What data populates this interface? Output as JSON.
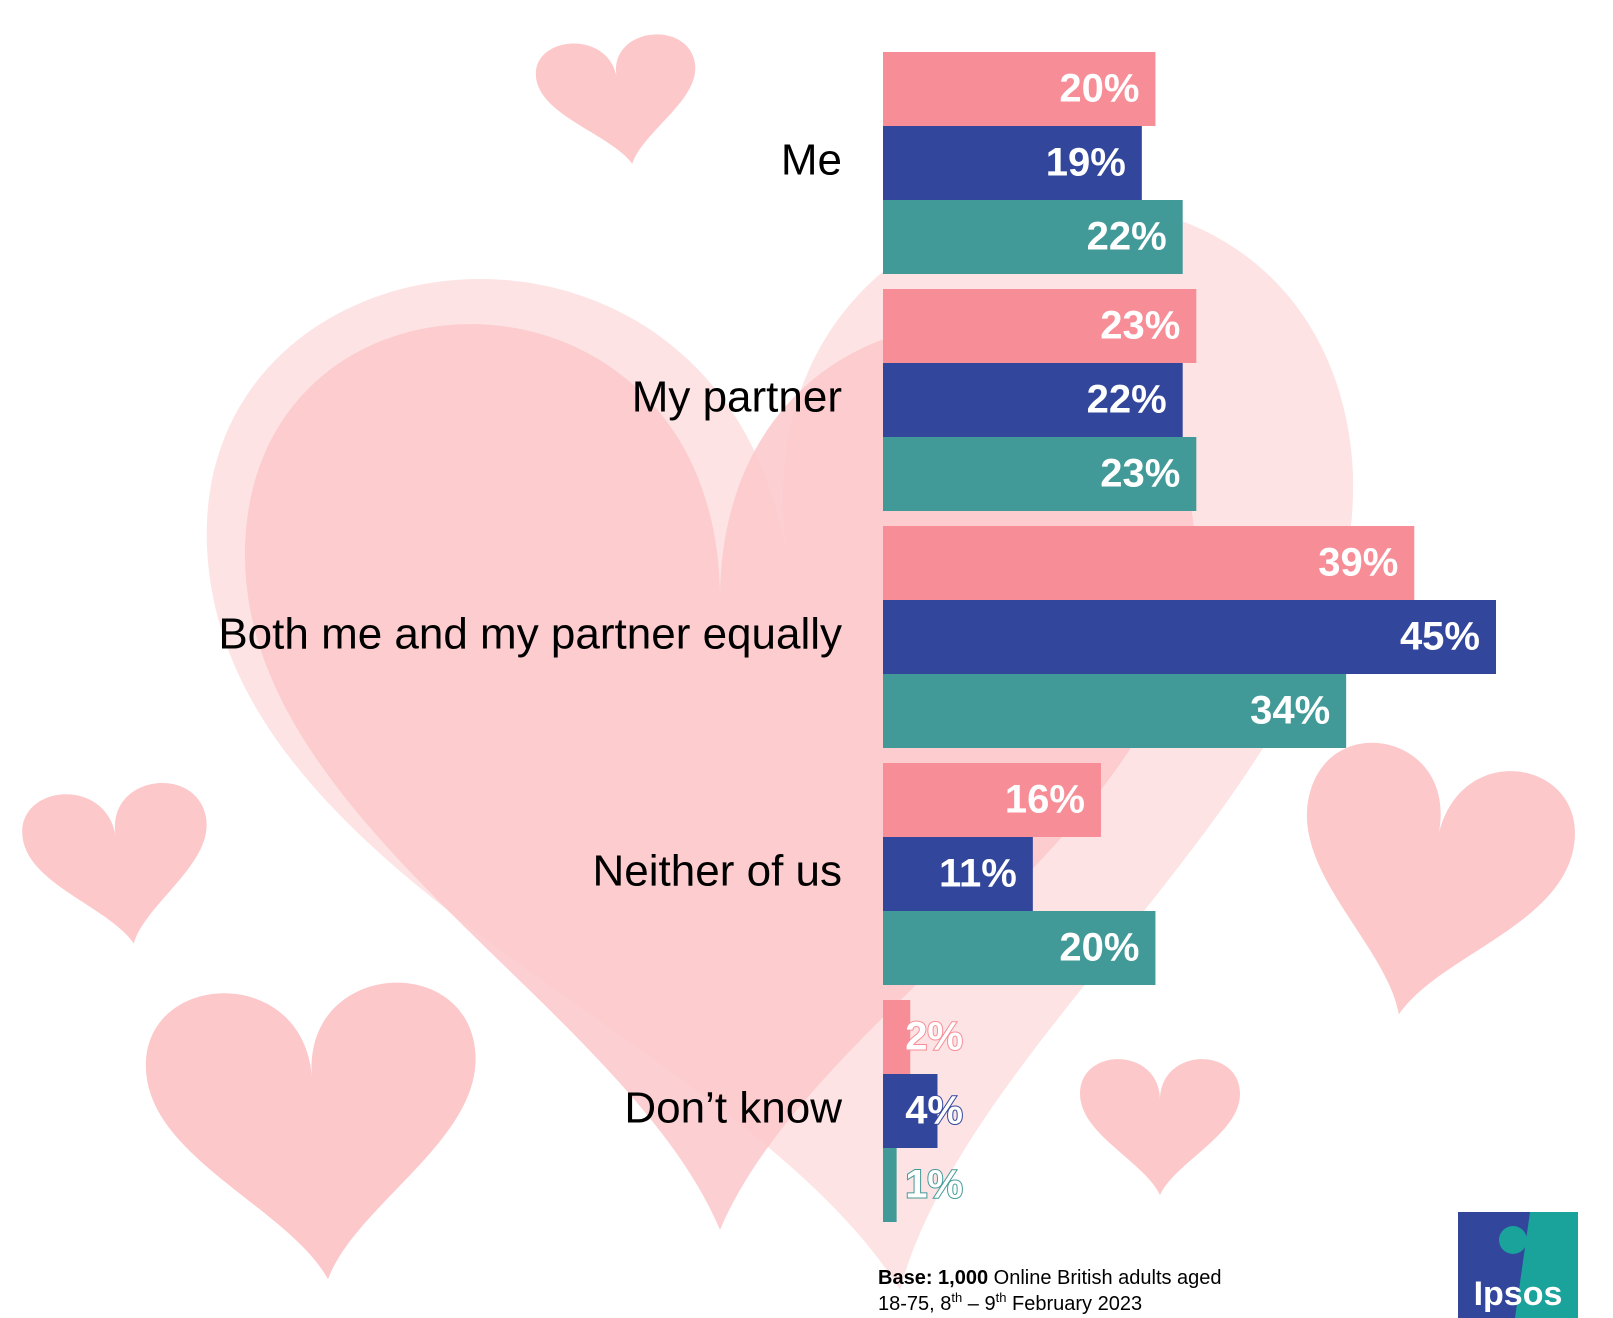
{
  "chart_data": {
    "type": "bar",
    "orientation": "horizontal",
    "categories": [
      "Me",
      "My partner",
      "Both me and my partner equally",
      "Neither of us",
      "Don’t know"
    ],
    "series": [
      {
        "color": "#f78d96",
        "values": [
          20,
          23,
          39,
          16,
          2
        ],
        "value_labels": [
          "20%",
          "23%",
          "39%",
          "16%",
          "2%"
        ]
      },
      {
        "color": "#32469c",
        "values": [
          19,
          22,
          45,
          11,
          4
        ],
        "value_labels": [
          "19%",
          "22%",
          "45%",
          "11%",
          "4%"
        ]
      },
      {
        "color": "#429a98",
        "values": [
          22,
          23,
          34,
          20,
          1
        ],
        "value_labels": [
          "22%",
          "23%",
          "34%",
          "20%",
          "1%"
        ]
      }
    ]
  },
  "footnote": {
    "parts": [
      "Base: 1,000",
      " Online British adults aged",
      "18-75, 8",
      "th",
      " – 9",
      "th",
      " February 2023"
    ]
  },
  "logo": "Ipsos"
}
